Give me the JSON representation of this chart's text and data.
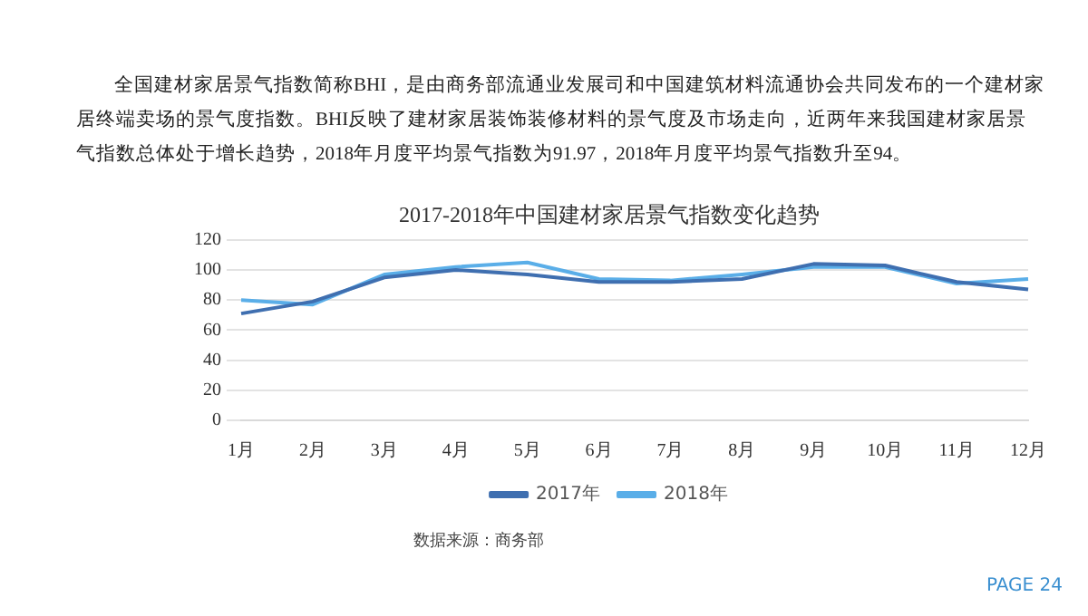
{
  "chart_data": {
    "type": "line",
    "title": "2017-2018年中国建材家居景气指数变化趋势",
    "categories": [
      "1月",
      "2月",
      "3月",
      "4月",
      "5月",
      "6月",
      "7月",
      "8月",
      "9月",
      "10月",
      "11月",
      "12月"
    ],
    "series": [
      {
        "name": "2017年",
        "color": "#3f6fb0",
        "values": [
          71,
          79,
          95,
          100,
          97,
          92,
          92,
          94,
          104,
          103,
          92,
          87
        ]
      },
      {
        "name": "2018年",
        "color": "#5aaee8",
        "values": [
          80,
          77,
          97,
          102,
          105,
          94,
          93,
          97,
          102,
          102,
          91,
          94
        ]
      }
    ],
    "ylim": [
      0,
      120
    ],
    "yticks": [
      0,
      20,
      40,
      60,
      80,
      100,
      120
    ],
    "grid": "y",
    "legend": "bottom",
    "marker": "none",
    "line_style": "solid",
    "annotations": [
      "全国建材家居景气指数简称BHI，是由商务部流通业发展司和中国建筑材料流通协会共同发布的一个建材家居终端卖场的景气度指数。BHI反映了建材家居装饰装修材料的景气度及市场走向，近两年来我国建材家居景气指数总体处于增长趋势，2018年月度平均景气指数为91.97，2018年月度平均景气指数升至94。",
      "数据来源：商务部",
      "PAGE 24"
    ]
  }
}
